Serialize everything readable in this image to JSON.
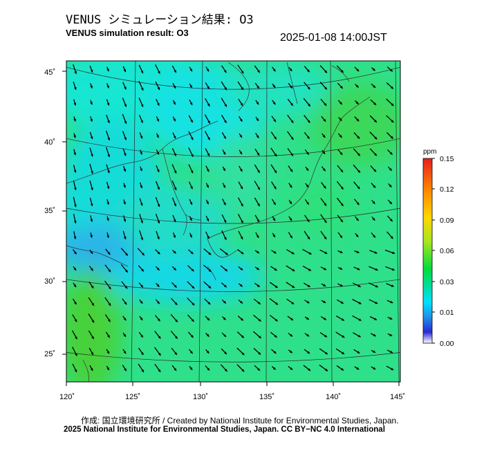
{
  "header": {
    "title_jp": "VENUS シミュレーション結果: O3",
    "title_en": "VENUS simulation result: O3",
    "timestamp": "2025-01-08 14:00JST"
  },
  "map": {
    "lat_labels": [
      "45˚",
      "40˚",
      "35˚",
      "30˚",
      "25˚"
    ],
    "lon_labels": [
      "120˚",
      "125˚",
      "130˚",
      "135˚",
      "140˚",
      "145˚"
    ]
  },
  "colorbar": {
    "unit": "ppm",
    "ticks": [
      "0.15",
      "0.12",
      "0.09",
      "0.06",
      "0.03",
      "0.01",
      "0.00"
    ],
    "colors": [
      "#ffffff",
      "#2a2ad4",
      "#1e90e6",
      "#00e0ff",
      "#00dc3c",
      "#a8e61e",
      "#ffd700",
      "#ff8c00",
      "#e81e1e"
    ]
  },
  "footer": {
    "credit_created": "作成: 国立環境研究所 / Created by National Institute for Environmental Studies, Japan.",
    "credit_copyright": "2025 National Institute for Environmental Studies, Japan. CC BY−NC 4.0 International"
  }
}
